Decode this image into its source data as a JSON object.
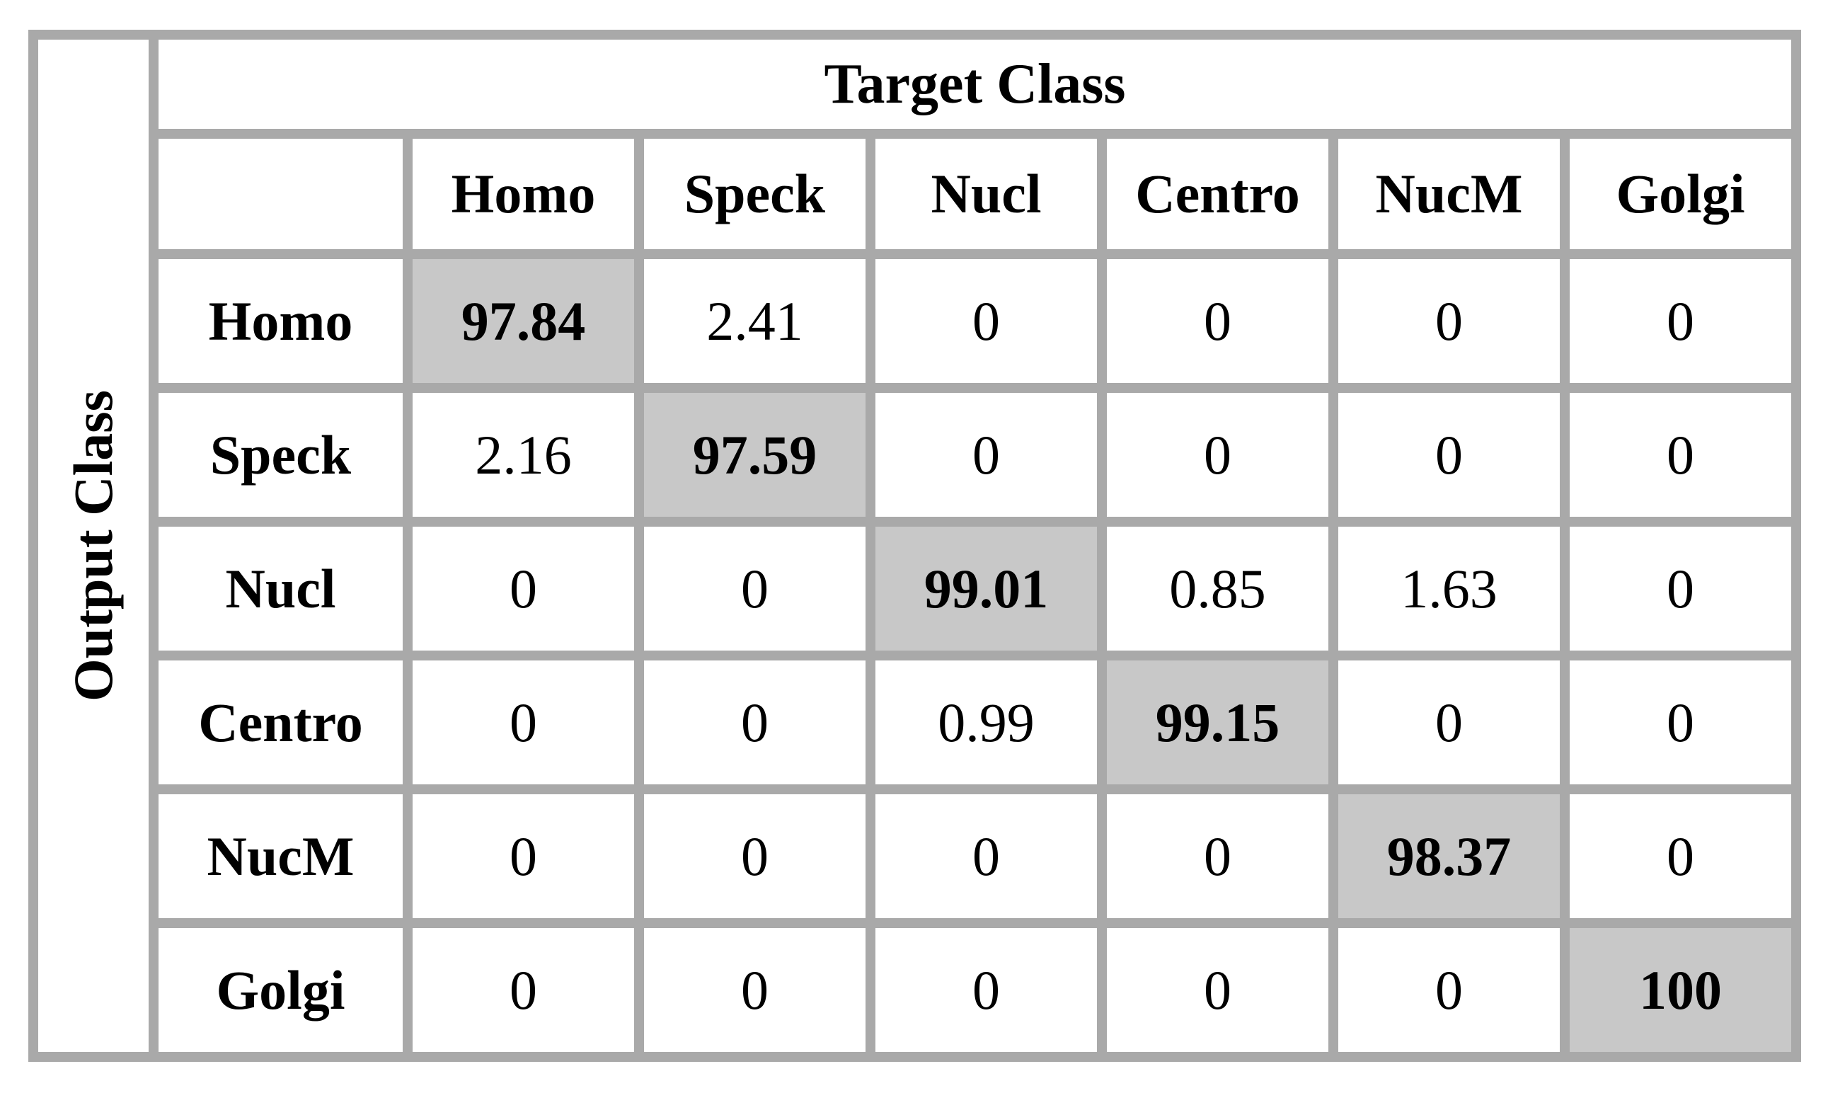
{
  "header": {
    "target_class": "Target Class"
  },
  "side": {
    "output_class": "Output Class"
  },
  "columns": [
    "Homo",
    "Speck",
    "Nucl",
    "Centro",
    "NucM",
    "Golgi"
  ],
  "rows": [
    {
      "label": "Homo",
      "values": [
        "97.84",
        "2.41",
        "0",
        "0",
        "0",
        "0"
      ]
    },
    {
      "label": "Speck",
      "values": [
        "2.16",
        "97.59",
        "0",
        "0",
        "0",
        "0"
      ]
    },
    {
      "label": "Nucl",
      "values": [
        "0",
        "0",
        "99.01",
        "0.85",
        "1.63",
        "0"
      ]
    },
    {
      "label": "Centro",
      "values": [
        "0",
        "0",
        "0.99",
        "99.15",
        "0",
        "0"
      ]
    },
    {
      "label": "NucM",
      "values": [
        "0",
        "0",
        "0",
        "0",
        "98.37",
        "0"
      ]
    },
    {
      "label": "Golgi",
      "values": [
        "0",
        "0",
        "0",
        "0",
        "0",
        "100"
      ]
    }
  ],
  "colors": {
    "grid_line": "#a9a9a9",
    "cell_fill": "#ffffff",
    "diagonal_fill": "#c8c8c8",
    "text": "#000000"
  },
  "chart_data": {
    "type": "table",
    "subtype": "confusion-matrix",
    "x_axis_label": "Target Class",
    "y_axis_label": "Output Class",
    "categories": [
      "Homo",
      "Speck",
      "Nucl",
      "Centro",
      "NucM",
      "Golgi"
    ],
    "matrix_rows_output_class": [
      "Homo",
      "Speck",
      "Nucl",
      "Centro",
      "NucM",
      "Golgi"
    ],
    "matrix_cols_target_class": [
      "Homo",
      "Speck",
      "Nucl",
      "Centro",
      "NucM",
      "Golgi"
    ],
    "matrix_percent": [
      [
        97.84,
        2.41,
        0,
        0,
        0,
        0
      ],
      [
        2.16,
        97.59,
        0,
        0,
        0,
        0
      ],
      [
        0,
        0,
        99.01,
        0.85,
        1.63,
        0
      ],
      [
        0,
        0,
        0.99,
        99.15,
        0,
        0
      ],
      [
        0,
        0,
        0,
        0,
        98.37,
        0
      ],
      [
        0,
        0,
        0,
        0,
        0,
        100
      ]
    ],
    "diagonal_highlighted": true,
    "legend": "none",
    "grid": "on"
  }
}
